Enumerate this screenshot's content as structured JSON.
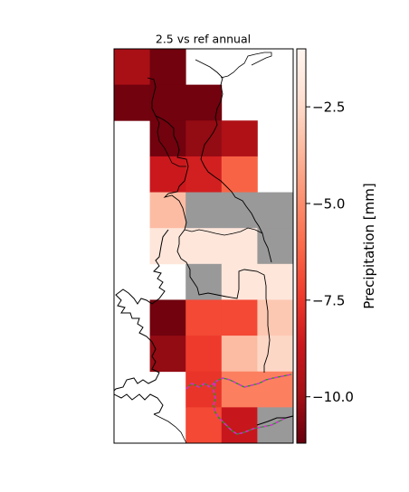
{
  "chart_data": {
    "type": "heatmap",
    "title": "2.5 vs ref annual",
    "colorbar": {
      "label": "Precipitation [mm]",
      "range": [
        -11.2,
        -1.0
      ],
      "ticks": [
        -2.5,
        -5.0,
        -7.5,
        -10.0
      ],
      "tick_labels": [
        "−2.5",
        "−5.0",
        "−7.5",
        "−10.0"
      ],
      "colormap": "Reds_r"
    },
    "grid": {
      "rows": 11,
      "cols": 5
    },
    "missing_color": "#999999",
    "cells": [
      [
        -9.8,
        -11.0,
        null,
        null,
        null
      ],
      [
        -11.0,
        -11.0,
        -11.0,
        null,
        null
      ],
      [
        null,
        -11.0,
        -10.3,
        -9.6,
        null
      ],
      [
        null,
        -8.7,
        -8.4,
        -6.3,
        null
      ],
      [
        null,
        -3.5,
        "missing",
        "missing",
        "missing"
      ],
      [
        null,
        -1.9,
        -1.9,
        -1.9,
        "missing"
      ],
      [
        null,
        null,
        "missing",
        -1.9,
        -1.9
      ],
      [
        null,
        -11.0,
        -7.0,
        -7.0,
        -3.1
      ],
      [
        null,
        -10.3,
        -7.4,
        -3.5,
        -2.6
      ],
      [
        null,
        null,
        -7.6,
        -5.4,
        -5.4
      ],
      [
        null,
        null,
        -7.0,
        -8.8,
        "missing"
      ]
    ],
    "overlays": [
      "coastline",
      "borders",
      "basin-boundary"
    ]
  }
}
